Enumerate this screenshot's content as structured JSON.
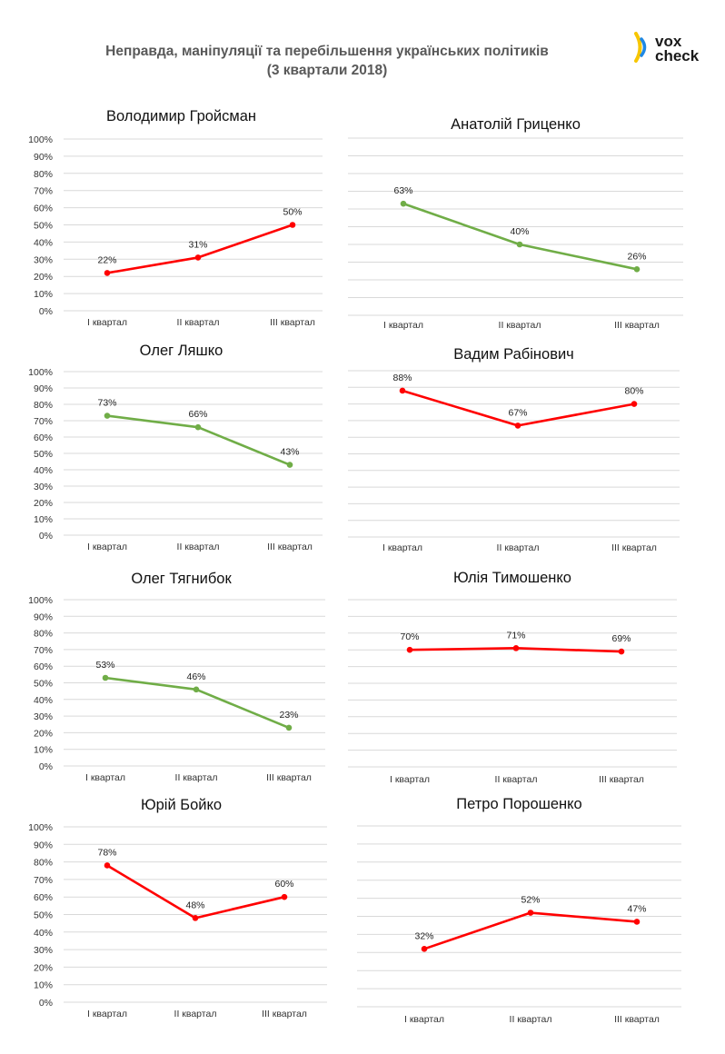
{
  "header": {
    "title_line1": "Неправда, маніпуляції та перебільшення українських політиків",
    "title_line2": "(3 квартали 2018)"
  },
  "logo": {
    "text_top": "vox",
    "text_bottom": "check",
    "colors": {
      "yellow": "#f7c600",
      "blue": "#1e88e5"
    }
  },
  "colors": {
    "red": "#ff0000",
    "green": "#70ad47",
    "grid": "#d9d9d9"
  },
  "chart_data": [
    {
      "type": "line",
      "title": "Володимир Гройсман",
      "color": "#ff0000",
      "categories": [
        "I квартал",
        "II квартал",
        "III квартал"
      ],
      "values": [
        22,
        31,
        50
      ],
      "data_labels": [
        "22%",
        "31%",
        "50%"
      ],
      "show_y_axis": true,
      "y_ticks": [
        "0%",
        "10%",
        "20%",
        "30%",
        "40%",
        "50%",
        "60%",
        "70%",
        "80%",
        "90%",
        "100%"
      ],
      "ylim": [
        0,
        100
      ]
    },
    {
      "type": "line",
      "title": "Анатолій Гриценко",
      "color": "#70ad47",
      "categories": [
        "I квартал",
        "II квартал",
        "III квартал"
      ],
      "values": [
        63,
        40,
        26
      ],
      "data_labels": [
        "63%",
        "40%",
        "26%"
      ],
      "show_y_axis": false,
      "ylim": [
        0,
        100
      ]
    },
    {
      "type": "line",
      "title": "Олег Ляшко",
      "color": "#70ad47",
      "categories": [
        "I квартал",
        "II квартал",
        "III квартал"
      ],
      "values": [
        73,
        66,
        43
      ],
      "data_labels": [
        "73%",
        "66%",
        "43%"
      ],
      "show_y_axis": true,
      "y_ticks": [
        "0%",
        "10%",
        "20%",
        "30%",
        "40%",
        "50%",
        "60%",
        "70%",
        "80%",
        "90%",
        "100%"
      ],
      "ylim": [
        0,
        100
      ]
    },
    {
      "type": "line",
      "title": "Вадим Рабінович",
      "color": "#ff0000",
      "categories": [
        "I квартал",
        "II квартал",
        "III квартал"
      ],
      "values": [
        88,
        67,
        80
      ],
      "data_labels": [
        "88%",
        "67%",
        "80%"
      ],
      "show_y_axis": false,
      "ylim": [
        0,
        100
      ]
    },
    {
      "type": "line",
      "title": "Олег Тягнибок",
      "color": "#70ad47",
      "categories": [
        "I квартал",
        "II квартал",
        "III квартал"
      ],
      "values": [
        53,
        46,
        23
      ],
      "data_labels": [
        "53%",
        "46%",
        "23%"
      ],
      "show_y_axis": true,
      "y_ticks": [
        "0%",
        "10%",
        "20%",
        "30%",
        "40%",
        "50%",
        "60%",
        "70%",
        "80%",
        "90%",
        "100%"
      ],
      "ylim": [
        0,
        100
      ]
    },
    {
      "type": "line",
      "title": "Юлія Тимошенко",
      "color": "#ff0000",
      "categories": [
        "I квартал",
        "II квартал",
        "III квартал"
      ],
      "values": [
        70,
        71,
        69
      ],
      "data_labels": [
        "70%",
        "71%",
        "69%"
      ],
      "show_y_axis": false,
      "ylim": [
        0,
        100
      ]
    },
    {
      "type": "line",
      "title": "Юрій Бойко",
      "color": "#ff0000",
      "categories": [
        "I квартал",
        "II квартал",
        "III квартал"
      ],
      "values": [
        78,
        48,
        60
      ],
      "data_labels": [
        "78%",
        "48%",
        "60%"
      ],
      "show_y_axis": true,
      "y_ticks": [
        "0%",
        "10%",
        "20%",
        "30%",
        "40%",
        "50%",
        "60%",
        "70%",
        "80%",
        "90%",
        "100%"
      ],
      "ylim": [
        0,
        100
      ]
    },
    {
      "type": "line",
      "title": "Петро Порошенко",
      "color": "#ff0000",
      "categories": [
        "I квартал",
        "II квартал",
        "III квартал"
      ],
      "values": [
        32,
        52,
        47
      ],
      "data_labels": [
        "32%",
        "52%",
        "47%"
      ],
      "show_y_axis": false,
      "ylim": [
        0,
        100
      ]
    }
  ]
}
